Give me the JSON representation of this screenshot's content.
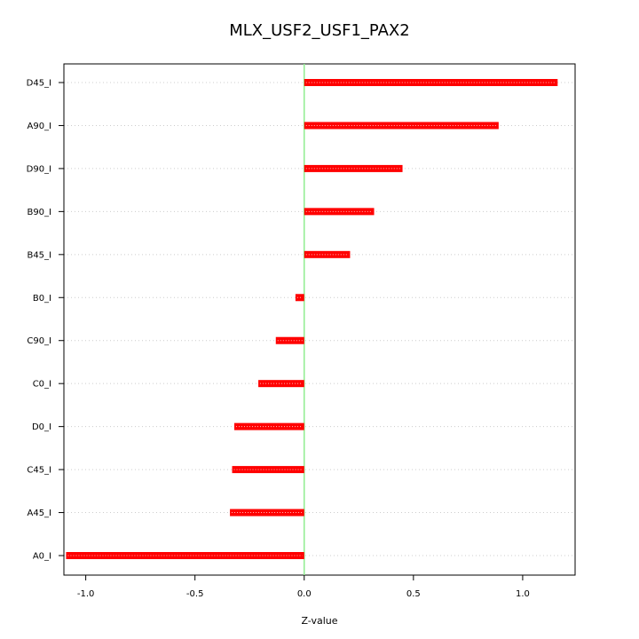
{
  "chart_data": {
    "type": "bar",
    "orientation": "horizontal",
    "title": "MLX_USF2_USF1_PAX2",
    "xlabel": "Z-value",
    "ylabel": "",
    "xlim": [
      -1.1,
      1.24
    ],
    "xticks": [
      -1.0,
      -0.5,
      0.0,
      0.5,
      1.0
    ],
    "xtick_labels": [
      "-1.0",
      "-0.5",
      "0.0",
      "0.5",
      "1.0"
    ],
    "grid": "horizontal dotted",
    "reference_line": 0,
    "colors": {
      "bar": "#ff0000",
      "bar_highlight": "#ffbbbb",
      "zero_line": "#90ee90",
      "grid": "#cccccc",
      "frame": "#000000"
    },
    "categories": [
      "D45_I",
      "A90_I",
      "D90_I",
      "B90_I",
      "B45_I",
      "B0_I",
      "C90_I",
      "C0_I",
      "D0_I",
      "C45_I",
      "A45_I",
      "A0_I"
    ],
    "values": [
      1.16,
      0.89,
      0.45,
      0.32,
      0.21,
      -0.04,
      -0.13,
      -0.21,
      -0.32,
      -0.33,
      -0.34,
      -1.09
    ]
  }
}
